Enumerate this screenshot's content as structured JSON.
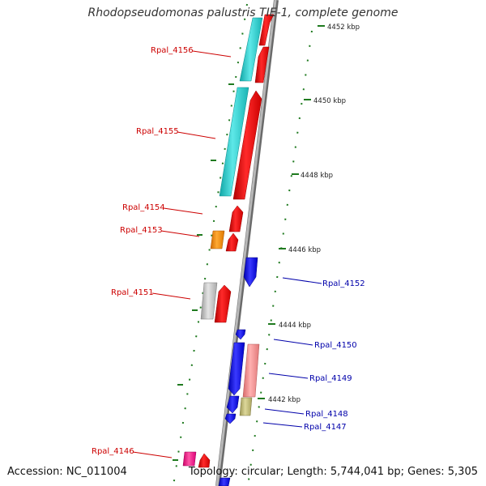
{
  "title": "Rhodopseudomonas palustris TIE-1, complete genome",
  "footer": {
    "accession": "Accession: NC_011004",
    "summary": "Topology: circular; Length: 5,744,041 bp; Genes: 5,305"
  },
  "colors": {
    "backbone": "#9a9a9a",
    "forward_label": "#cc0000",
    "reverse_label": "#0000aa",
    "tick": "#1f7a1f",
    "red": "#ff1010",
    "cyan": "#2ccfcf",
    "orange": "#ff8c00",
    "gray": "#c0c0c0",
    "blue": "#1a1aee",
    "pink": "#f08a8a",
    "olive": "#c2bc73",
    "magenta": "#ff1a8c"
  },
  "scale_ticks": [
    "4452 kbp",
    "4450 kbp",
    "4448 kbp",
    "4446 kbp",
    "4444 kbp",
    "4442 kbp"
  ],
  "forward_labels": [
    "Rpal_4156",
    "Rpal_4155",
    "Rpal_4154",
    "Rpal_4153",
    "Rpal_4151",
    "Rpal_4146"
  ],
  "reverse_labels": [
    "Rpal_4152",
    "Rpal_4150",
    "Rpal_4149",
    "Rpal_4148",
    "Rpal_4147"
  ]
}
